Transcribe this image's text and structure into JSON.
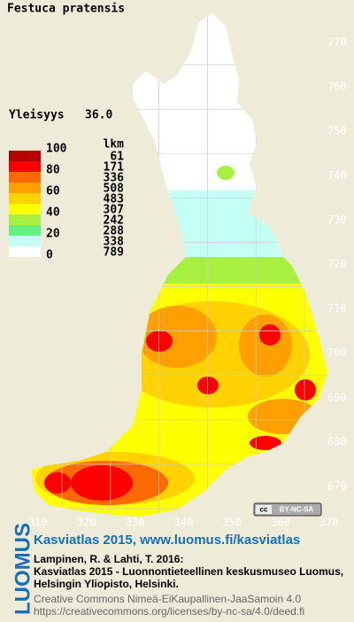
{
  "title": "Festuca pratensis",
  "frequency": {
    "label": "Yleisyys",
    "value": "36.0"
  },
  "legend": {
    "count_header": "lkm",
    "scale_labels": [
      100,
      80,
      60,
      40,
      20,
      0
    ],
    "classes": [
      {
        "color": "#b40000",
        "count": 61
      },
      {
        "color": "#ff0000",
        "count": 171
      },
      {
        "color": "#ff6a00",
        "count": 336
      },
      {
        "color": "#ffa000",
        "count": 508
      },
      {
        "color": "#ffd200",
        "count": 483
      },
      {
        "color": "#ffff00",
        "count": 307
      },
      {
        "color": "#a8f040",
        "count": 242
      },
      {
        "color": "#66f080",
        "count": 288
      },
      {
        "color": "#c4fff4",
        "count": 338
      },
      {
        "color": "#ffffff",
        "count": 789
      }
    ]
  },
  "map": {
    "yticks": [
      770,
      760,
      750,
      740,
      730,
      720,
      710,
      700,
      690,
      680,
      670
    ],
    "xticks": [
      310,
      320,
      330,
      340,
      350,
      360,
      370
    ]
  },
  "license_badge": {
    "cc": "cc",
    "text": "BY-NC-SA"
  },
  "footer": {
    "logo": "LUOMUS",
    "heading": "Kasviatlas 2015, www.luomus.fi/kasviatlas",
    "citation": [
      "Lampinen, R. & Lahti, T. 2016:",
      "Kasviatlas 2015 - Luonnontieteellinen keskusmuseo Luomus,",
      "Helsingin Yliopisto, Helsinki."
    ],
    "license": [
      "Creative Commons Nimeä-EiKaupallinen-JaaSamoin 4.0",
      "https://creativecommons.org/licenses/by-nc-sa/4.0/deed.fi"
    ]
  }
}
